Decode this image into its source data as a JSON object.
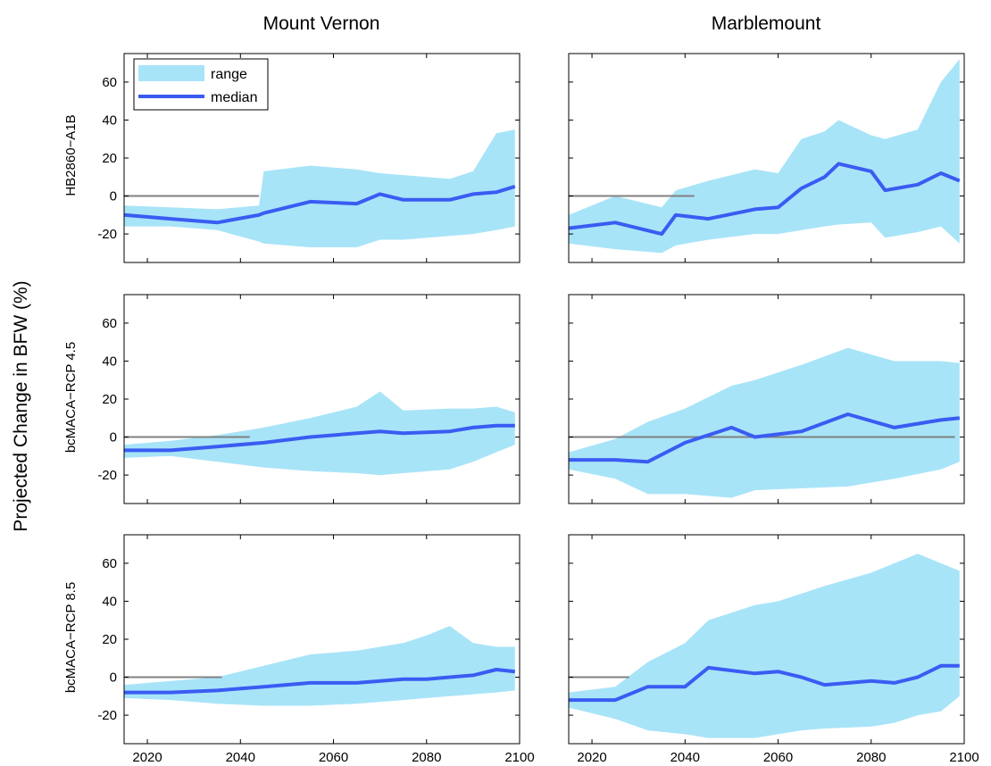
{
  "figure": {
    "ylabel": "Projected Change in BFW (%)",
    "columns": [
      "Mount Vernon",
      "Marblemount"
    ],
    "rows": [
      "HB2860−A1B",
      "bcMACA−RCP 4.5",
      "bcMACA−RCP 8.5"
    ],
    "legend": {
      "range": "range",
      "median": "median",
      "placement": "top-left (first panel)"
    },
    "colors": {
      "range": "#a8e4f8",
      "median": "#3a5cf2",
      "zero_line": "#808080"
    }
  },
  "chart_data": [
    {
      "type": "area",
      "row": "HB2860−A1B",
      "column": "Mount Vernon",
      "xlim": [
        2015,
        2100
      ],
      "ylim": [
        -35,
        75
      ],
      "xticks": [
        2020,
        2040,
        2060,
        2080,
        2100
      ],
      "yticks": [
        -20,
        0,
        20,
        40,
        60
      ],
      "x": [
        2015,
        2025,
        2035,
        2044,
        2045,
        2055,
        2065,
        2070,
        2075,
        2085,
        2090,
        2095,
        2099
      ],
      "median": [
        -10,
        -12,
        -14,
        -10,
        -9,
        -3,
        -4,
        1,
        -2,
        -2,
        1,
        2,
        5
      ],
      "lower": [
        -16,
        -16,
        -18,
        -24,
        -25,
        -27,
        -27,
        -23,
        -23,
        -21,
        -20,
        -18,
        -16
      ],
      "upper": [
        -5,
        -6,
        -7,
        -5,
        13,
        16,
        14,
        12,
        11,
        9,
        13,
        33,
        35
      ],
      "zero_line_end": 2044
    },
    {
      "type": "area",
      "row": "HB2860−A1B",
      "column": "Marblemount",
      "xlim": [
        2015,
        2100
      ],
      "ylim": [
        -35,
        75
      ],
      "xticks": [
        2020,
        2040,
        2060,
        2080,
        2100
      ],
      "yticks": [
        -20,
        0,
        20,
        40,
        60
      ],
      "x": [
        2015,
        2025,
        2035,
        2038,
        2045,
        2055,
        2060,
        2065,
        2070,
        2073,
        2080,
        2083,
        2090,
        2095,
        2099
      ],
      "median": [
        -17,
        -14,
        -20,
        -10,
        -12,
        -7,
        -6,
        4,
        10,
        17,
        13,
        3,
        6,
        12,
        8
      ],
      "lower": [
        -25,
        -28,
        -30,
        -26,
        -23,
        -20,
        -20,
        -18,
        -16,
        -15,
        -14,
        -22,
        -19,
        -16,
        -25
      ],
      "upper": [
        -10,
        0,
        -6,
        3,
        8,
        14,
        12,
        30,
        34,
        40,
        32,
        30,
        35,
        60,
        72
      ],
      "zero_line_end": 2042
    },
    {
      "type": "area",
      "row": "bcMACA−RCP 4.5",
      "column": "Mount Vernon",
      "xlim": [
        2015,
        2100
      ],
      "ylim": [
        -35,
        75
      ],
      "xticks": [
        2020,
        2040,
        2060,
        2080,
        2100
      ],
      "yticks": [
        -20,
        0,
        20,
        40,
        60
      ],
      "x": [
        2015,
        2025,
        2035,
        2045,
        2055,
        2065,
        2070,
        2075,
        2085,
        2090,
        2095,
        2099
      ],
      "median": [
        -7,
        -7,
        -5,
        -3,
        0,
        2,
        3,
        2,
        3,
        5,
        6,
        6
      ],
      "lower": [
        -11,
        -10,
        -13,
        -16,
        -18,
        -19,
        -20,
        -19,
        -17,
        -13,
        -8,
        -4
      ],
      "upper": [
        -4,
        -2,
        1,
        5,
        10,
        16,
        24,
        14,
        15,
        15,
        16,
        13
      ],
      "zero_line_end": 2042
    },
    {
      "type": "area",
      "row": "bcMACA−RCP 4.5",
      "column": "Marblemount",
      "xlim": [
        2015,
        2100
      ],
      "ylim": [
        -35,
        75
      ],
      "xticks": [
        2020,
        2040,
        2060,
        2080,
        2100
      ],
      "yticks": [
        -20,
        0,
        20,
        40,
        60
      ],
      "x": [
        2015,
        2025,
        2032,
        2040,
        2050,
        2055,
        2065,
        2075,
        2085,
        2095,
        2099
      ],
      "median": [
        -12,
        -12,
        -13,
        -3,
        5,
        0,
        3,
        12,
        5,
        9,
        10
      ],
      "lower": [
        -17,
        -22,
        -30,
        -30,
        -32,
        -28,
        -27,
        -26,
        -22,
        -17,
        -13
      ],
      "upper": [
        -8,
        -1,
        8,
        15,
        27,
        30,
        38,
        47,
        40,
        40,
        39
      ],
      "zero_line_end": 2098
    },
    {
      "type": "area",
      "row": "bcMACA−RCP 8.5",
      "column": "Mount Vernon",
      "xlim": [
        2015,
        2100
      ],
      "ylim": [
        -35,
        75
      ],
      "xticks": [
        2020,
        2040,
        2060,
        2080,
        2100
      ],
      "yticks": [
        -20,
        0,
        20,
        40,
        60
      ],
      "x": [
        2015,
        2025,
        2035,
        2045,
        2055,
        2065,
        2075,
        2080,
        2085,
        2090,
        2095,
        2099
      ],
      "median": [
        -8,
        -8,
        -7,
        -5,
        -3,
        -3,
        -1,
        -1,
        0,
        1,
        4,
        3
      ],
      "lower": [
        -11,
        -12,
        -14,
        -15,
        -15,
        -14,
        -12,
        -11,
        -10,
        -9,
        -8,
        -7
      ],
      "upper": [
        -4,
        -2,
        0,
        6,
        12,
        14,
        18,
        22,
        27,
        18,
        16,
        16
      ],
      "zero_line_end": 2036
    },
    {
      "type": "area",
      "row": "bcMACA−RCP 8.5",
      "column": "Marblemount",
      "xlim": [
        2015,
        2100
      ],
      "ylim": [
        -35,
        75
      ],
      "xticks": [
        2020,
        2040,
        2060,
        2080,
        2100
      ],
      "yticks": [
        -20,
        0,
        20,
        40,
        60
      ],
      "x": [
        2015,
        2025,
        2032,
        2040,
        2045,
        2055,
        2060,
        2065,
        2070,
        2080,
        2085,
        2090,
        2095,
        2099
      ],
      "median": [
        -12,
        -12,
        -5,
        -5,
        5,
        2,
        3,
        0,
        -4,
        -2,
        -3,
        0,
        6,
        6
      ],
      "lower": [
        -16,
        -22,
        -28,
        -30,
        -32,
        -32,
        -30,
        -28,
        -27,
        -26,
        -24,
        -20,
        -18,
        -10
      ],
      "upper": [
        -8,
        -5,
        8,
        18,
        30,
        38,
        40,
        44,
        48,
        55,
        60,
        65,
        60,
        56
      ],
      "zero_line_end": 2028
    }
  ]
}
